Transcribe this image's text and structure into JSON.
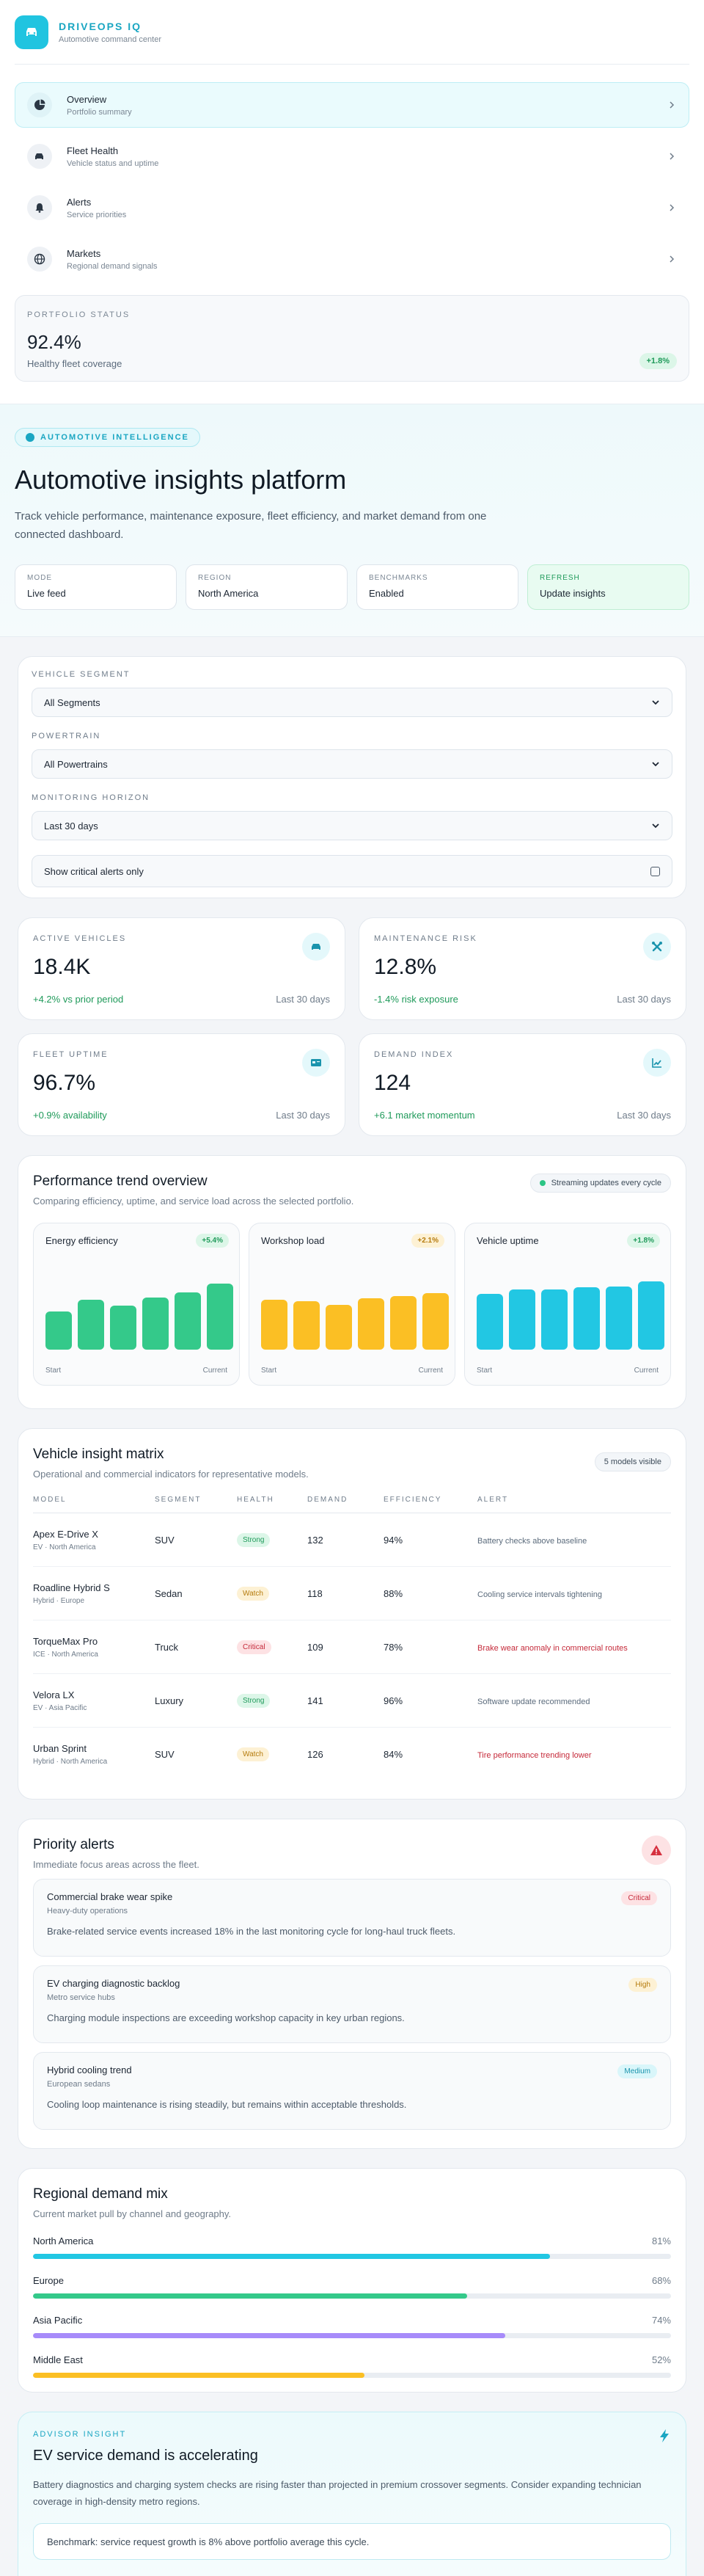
{
  "brand": {
    "name": "DRIVEOPS IQ",
    "subtitle": "Automotive command center"
  },
  "nav": [
    {
      "label": "Overview",
      "sub": "Portfolio summary",
      "icon": "pie-chart-icon"
    },
    {
      "label": "Fleet Health",
      "sub": "Vehicle status and uptime",
      "icon": "car-icon"
    },
    {
      "label": "Alerts",
      "sub": "Service priorities",
      "icon": "bell-icon"
    },
    {
      "label": "Markets",
      "sub": "Regional demand signals",
      "icon": "globe-icon"
    }
  ],
  "portfolio": {
    "caption": "PORTFOLIO STATUS",
    "value": "92.4%",
    "sub": "Healthy fleet coverage",
    "badge": "+1.8%"
  },
  "hero": {
    "eyebrow": "AUTOMOTIVE INTELLIGENCE",
    "title": "Automotive insights platform",
    "description": "Track vehicle performance, maintenance exposure, fleet efficiency, and market demand from one connected dashboard.",
    "pills": [
      {
        "caption": "Mode",
        "value": "Live feed"
      },
      {
        "caption": "Region",
        "value": "North America"
      },
      {
        "caption": "Benchmarks",
        "value": "Enabled"
      },
      {
        "caption": "Refresh",
        "value": "Update insights"
      }
    ]
  },
  "filters": {
    "segment_label": "VEHICLE SEGMENT",
    "segment_value": "All Segments",
    "powertrain_label": "POWERTRAIN",
    "powertrain_value": "All Powertrains",
    "horizon_label": "MONITORING HORIZON",
    "horizon_value": "Last 30 days",
    "toggle_label": "Show critical alerts only"
  },
  "kpis": [
    {
      "caption": "ACTIVE VEHICLES",
      "value": "18.4K",
      "delta": "+4.2% vs prior period",
      "period": "Last 30 days",
      "icon": "car-icon"
    },
    {
      "caption": "MAINTENANCE RISK",
      "value": "12.8%",
      "delta": "-1.4% risk exposure",
      "period": "Last 30 days",
      "icon": "wrench-icon"
    },
    {
      "caption": "FLEET UPTIME",
      "value": "96.7%",
      "delta": "+0.9% availability",
      "period": "Last 30 days",
      "icon": "id-card-icon"
    },
    {
      "caption": "DEMAND INDEX",
      "value": "124",
      "delta": "+6.1 market momentum",
      "period": "Last 30 days",
      "icon": "line-chart-icon"
    }
  ],
  "trend": {
    "title": "Performance trend overview",
    "subtitle": "Comparing efficiency, uptime, and service load across the selected portfolio.",
    "badge": "Streaming updates every cycle",
    "start_label": "Start",
    "current_label": "Current",
    "charts": [
      {
        "title": "Energy efficiency",
        "badge": "+5.4%",
        "color": "#34c98a",
        "badge_bg": "#dcf6e8",
        "badge_fg": "#1f9a5a",
        "values": [
          52,
          68,
          60,
          71,
          78,
          90
        ]
      },
      {
        "title": "Workshop load",
        "badge": "+2.1%",
        "color": "#fbbf24",
        "badge_bg": "#fdf1d4",
        "badge_fg": "#b57b0d",
        "values": [
          68,
          66,
          61,
          70,
          73,
          77
        ]
      },
      {
        "title": "Vehicle uptime",
        "badge": "+1.8%",
        "color": "#22c7e3",
        "badge_bg": "#dcf6e8",
        "badge_fg": "#1f9a5a",
        "values": [
          76,
          82,
          82,
          85,
          86,
          93
        ]
      }
    ]
  },
  "matrix": {
    "title": "Vehicle insight matrix",
    "subtitle": "Operational and commercial indicators for representative models.",
    "badge": "5 models visible",
    "headers": [
      "MODEL",
      "SEGMENT",
      "HEALTH",
      "DEMAND",
      "EFFICIENCY",
      "ALERT"
    ],
    "rows": [
      {
        "model": "Apex E-Drive X",
        "sub": "EV · North America",
        "segment": "SUV",
        "health": "Strong",
        "demand": "132",
        "efficiency": "94%",
        "alert": "Battery checks above baseline"
      },
      {
        "model": "Roadline Hybrid S",
        "sub": "Hybrid · Europe",
        "segment": "Sedan",
        "health": "Watch",
        "demand": "118",
        "efficiency": "88%",
        "alert": "Cooling service intervals tightening"
      },
      {
        "model": "TorqueMax Pro",
        "sub": "ICE · North America",
        "segment": "Truck",
        "health": "Critical",
        "demand": "109",
        "efficiency": "78%",
        "alert": "Brake wear anomaly in commercial routes"
      },
      {
        "model": "Velora LX",
        "sub": "EV · Asia Pacific",
        "segment": "Luxury",
        "health": "Strong",
        "demand": "141",
        "efficiency": "96%",
        "alert": "Software update recommended"
      },
      {
        "model": "Urban Sprint",
        "sub": "Hybrid · North America",
        "segment": "SUV",
        "health": "Watch",
        "demand": "126",
        "efficiency": "84%",
        "alert": "Tire performance trending lower"
      }
    ]
  },
  "priority": {
    "title": "Priority alerts",
    "subtitle": "Immediate focus areas across the fleet.",
    "alerts": [
      {
        "title": "Commercial brake wear spike",
        "sub": "Heavy-duty operations",
        "body": "Brake-related service events increased 18% in the last monitoring cycle for long-haul truck fleets.",
        "badge": "Critical"
      },
      {
        "title": "EV charging diagnostic backlog",
        "sub": "Metro service hubs",
        "body": "Charging module inspections are exceeding workshop capacity in key urban regions.",
        "badge": "High"
      },
      {
        "title": "Hybrid cooling trend",
        "sub": "European sedans",
        "body": "Cooling loop maintenance is rising steadily, but remains within acceptable thresholds.",
        "badge": "Medium"
      }
    ]
  },
  "demand": {
    "title": "Regional demand mix",
    "subtitle": "Current market pull by channel and geography.",
    "regions": [
      {
        "name": "North America",
        "pct": "81%",
        "value": 81,
        "color": "#22c7e3"
      },
      {
        "name": "Europe",
        "pct": "68%",
        "value": 68,
        "color": "#34c98a"
      },
      {
        "name": "Asia Pacific",
        "pct": "74%",
        "value": 74,
        "color": "#a78bfa"
      },
      {
        "name": "Middle East",
        "pct": "52%",
        "value": 52,
        "color": "#fbbf24"
      }
    ]
  },
  "advisor": {
    "caption": "ADVISOR INSIGHT",
    "title": "EV service demand is accelerating",
    "body": "Battery diagnostics and charging system checks are rising faster than projected in premium crossover segments. Consider expanding technician coverage in high-density metro regions.",
    "benchmark": "Benchmark: service request growth is 8% above portfolio average this cycle."
  }
}
